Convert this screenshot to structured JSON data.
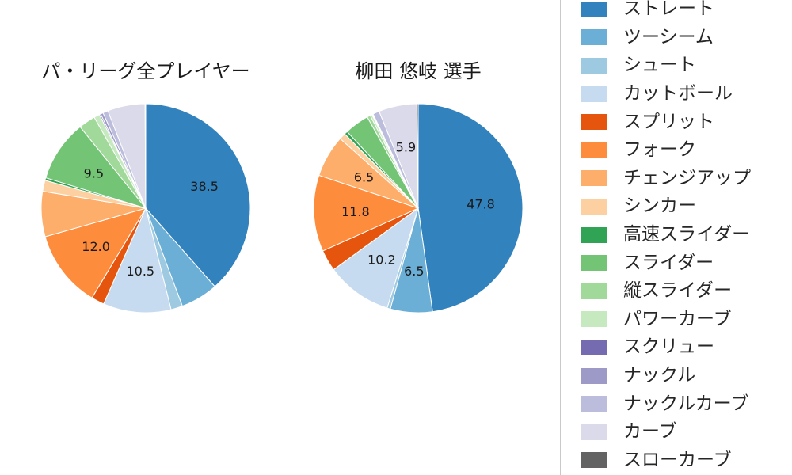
{
  "page": {
    "background": "#ffffff"
  },
  "chart_data": [
    {
      "type": "pie",
      "title": "パ・リーグ全プレイヤー",
      "start_angle": "top",
      "direction": "clockwise",
      "center": {
        "x": 184,
        "y": 263
      },
      "radius": 132,
      "value_label_note": "percent labels shown only for larger slices",
      "series": [
        {
          "name": "ストレート",
          "value": 38.5,
          "label_shown": true
        },
        {
          "name": "ツーシーム",
          "value": 5.8,
          "label_shown": false
        },
        {
          "name": "シュート",
          "value": 1.8,
          "label_shown": false
        },
        {
          "name": "カットボール",
          "value": 10.5,
          "label_shown": true
        },
        {
          "name": "スプリット",
          "value": 2.0,
          "label_shown": false
        },
        {
          "name": "フォーク",
          "value": 12.0,
          "label_shown": true
        },
        {
          "name": "チェンジアップ",
          "value": 7.0,
          "label_shown": false
        },
        {
          "name": "シンカー",
          "value": 1.7,
          "label_shown": false
        },
        {
          "name": "高速スライダー",
          "value": 0.4,
          "label_shown": false
        },
        {
          "name": "スライダー",
          "value": 9.5,
          "label_shown": true
        },
        {
          "name": "縦スライダー",
          "value": 2.6,
          "label_shown": false
        },
        {
          "name": "パワーカーブ",
          "value": 0.9,
          "label_shown": false
        },
        {
          "name": "スクリュー",
          "value": 0.2,
          "label_shown": false
        },
        {
          "name": "ナックル",
          "value": 0.4,
          "label_shown": false
        },
        {
          "name": "ナックルカーブ",
          "value": 0.8,
          "label_shown": false
        },
        {
          "name": "カーブ",
          "value": 5.8,
          "label_shown": false
        },
        {
          "name": "スローカーブ",
          "value": 0.1,
          "label_shown": false
        }
      ]
    },
    {
      "type": "pie",
      "title": "柳田 悠岐 選手",
      "start_angle": "top",
      "direction": "clockwise",
      "center": {
        "x": 528,
        "y": 263
      },
      "radius": 132,
      "value_label_note": "percent labels shown only for larger slices",
      "series": [
        {
          "name": "ストレート",
          "value": 47.8,
          "label_shown": true
        },
        {
          "name": "ツーシーム",
          "value": 6.5,
          "label_shown": true
        },
        {
          "name": "シュート",
          "value": 0.5,
          "label_shown": false
        },
        {
          "name": "カットボール",
          "value": 10.2,
          "label_shown": true
        },
        {
          "name": "スプリット",
          "value": 3.3,
          "label_shown": false
        },
        {
          "name": "フォーク",
          "value": 11.8,
          "label_shown": true
        },
        {
          "name": "チェンジアップ",
          "value": 6.5,
          "label_shown": true
        },
        {
          "name": "シンカー",
          "value": 1.0,
          "label_shown": false
        },
        {
          "name": "高速スライダー",
          "value": 0.5,
          "label_shown": false
        },
        {
          "name": "スライダー",
          "value": 3.8,
          "label_shown": false
        },
        {
          "name": "縦スライダー",
          "value": 0.5,
          "label_shown": false
        },
        {
          "name": "パワーカーブ",
          "value": 0.3,
          "label_shown": false
        },
        {
          "name": "スクリュー",
          "value": 0.1,
          "label_shown": false
        },
        {
          "name": "ナックル",
          "value": 0.1,
          "label_shown": false
        },
        {
          "name": "ナックルカーブ",
          "value": 1.0,
          "label_shown": false
        },
        {
          "name": "カーブ",
          "value": 5.9,
          "label_shown": true
        },
        {
          "name": "スローカーブ",
          "value": 0.2,
          "label_shown": false
        }
      ]
    }
  ],
  "legend": {
    "items": [
      {
        "label": "ストレート",
        "color": "#3182bd"
      },
      {
        "label": "ツーシーム",
        "color": "#6baed6"
      },
      {
        "label": "シュート",
        "color": "#9ecae1"
      },
      {
        "label": "カットボール",
        "color": "#c6dbef"
      },
      {
        "label": "スプリット",
        "color": "#e6550d"
      },
      {
        "label": "フォーク",
        "color": "#fd8d3c"
      },
      {
        "label": "チェンジアップ",
        "color": "#fdae6b"
      },
      {
        "label": "シンカー",
        "color": "#fdd0a2"
      },
      {
        "label": "高速スライダー",
        "color": "#31a354"
      },
      {
        "label": "スライダー",
        "color": "#74c476"
      },
      {
        "label": "縦スライダー",
        "color": "#a1d99b"
      },
      {
        "label": "パワーカーブ",
        "color": "#c7e9c0"
      },
      {
        "label": "スクリュー",
        "color": "#756bb1"
      },
      {
        "label": "ナックル",
        "color": "#9e9ac8"
      },
      {
        "label": "ナックルカーブ",
        "color": "#bcbddc"
      },
      {
        "label": "カーブ",
        "color": "#dadaeb"
      },
      {
        "label": "スローカーブ",
        "color": "#636363"
      }
    ]
  },
  "style": {
    "percent_label_color": "#1a1a1a",
    "slice_edge_color": "#ffffff",
    "divider_color": "#c9c9c9"
  }
}
